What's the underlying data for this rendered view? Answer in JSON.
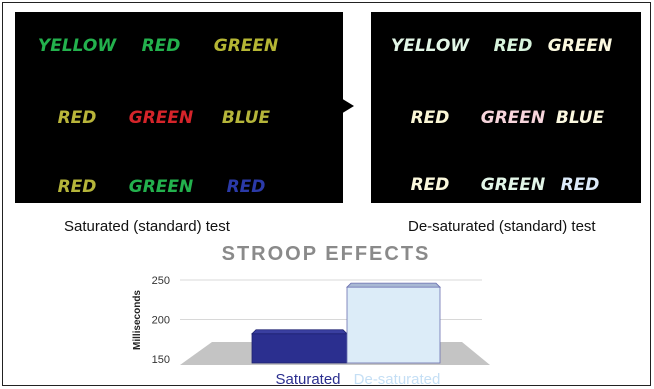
{
  "saturated_panel": {
    "caption": "Saturated (standard) test",
    "rows": [
      [
        {
          "text": "YELLOW",
          "color": "#23b14d"
        },
        {
          "text": "RED",
          "color": "#23b14d"
        },
        {
          "text": "GREEN",
          "color": "#b5b634"
        }
      ],
      [
        {
          "text": "RED",
          "color": "#b9b53a"
        },
        {
          "text": "GREEN",
          "color": "#d5242a"
        },
        {
          "text": "BLUE",
          "color": "#b5b53a"
        }
      ],
      [
        {
          "text": "RED",
          "color": "#b5b53a"
        },
        {
          "text": "GREEN",
          "color": "#23b14d"
        },
        {
          "text": "RED",
          "color": "#2b3aa8"
        }
      ]
    ]
  },
  "desaturated_panel": {
    "caption": "De-saturated (standard) test",
    "rows": [
      [
        {
          "text": "YELLOW",
          "color": "#e2f6e6"
        },
        {
          "text": "RED",
          "color": "#d7f3dc"
        },
        {
          "text": "GREEN",
          "color": "#fbf9df"
        }
      ],
      [
        {
          "text": "RED",
          "color": "#fbf7d6"
        },
        {
          "text": "GREEN",
          "color": "#f7d5dc"
        },
        {
          "text": "BLUE",
          "color": "#fbf8e0"
        }
      ],
      [
        {
          "text": "RED",
          "color": "#fbf8dc"
        },
        {
          "text": "GREEN",
          "color": "#e3f6e8"
        },
        {
          "text": "RED",
          "color": "#dceaf9"
        }
      ]
    ]
  },
  "arrow": {
    "icon": "right-arrow-icon",
    "color": "#000000"
  },
  "chart_data": {
    "type": "bar",
    "title": "STROOP EFFECTS",
    "ylabel": "Milliseconds",
    "xlabel": "",
    "categories": [
      "Saturated",
      "De-saturated"
    ],
    "values": [
      187,
      246
    ],
    "colors": [
      "#2b2f8f",
      "#dcecf8"
    ],
    "label_colors": [
      "#2b2f8f",
      "#c5dff5"
    ],
    "yticks": [
      150,
      200,
      250
    ],
    "ylim": [
      150,
      260
    ],
    "grid": true,
    "style": "3d"
  }
}
